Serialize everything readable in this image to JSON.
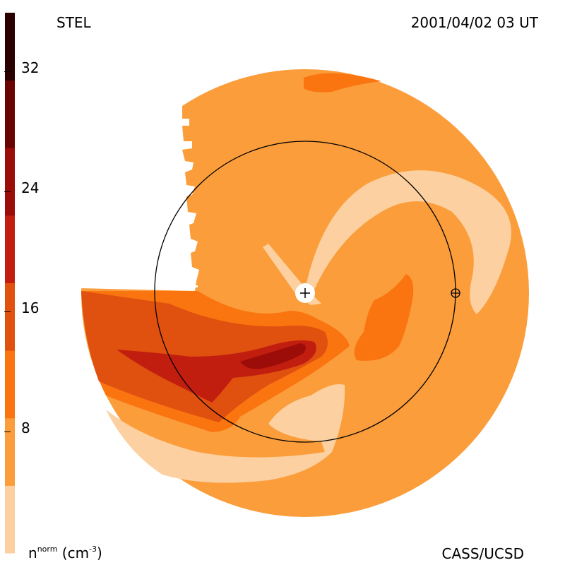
{
  "header": {
    "source": "STEL",
    "datetime": "2001/04/02 03 UT"
  },
  "footer": {
    "credit": "CASS/UCSD"
  },
  "colorbar": {
    "unit": {
      "base": "n",
      "sup": "norm",
      "rest": " (cm",
      "rest_sup": "-3",
      "close": ")"
    },
    "ticks": [
      "8",
      "16",
      "24",
      "32"
    ],
    "colors": [
      "#fcd0a0",
      "#fb9d3a",
      "#fa7410",
      "#e0500e",
      "#c21e10",
      "#9c0c08",
      "#6a0402",
      "#2a0000"
    ]
  },
  "map": {
    "center_symbol": "+",
    "earth_symbol": "⊕",
    "colors": {
      "lightest": "#fcd0a0",
      "background": "#fb9d3a",
      "orange": "#fa7410",
      "dark_orange": "#e0500e",
      "red": "#c21e10",
      "dark_red": "#9c0c08"
    }
  }
}
